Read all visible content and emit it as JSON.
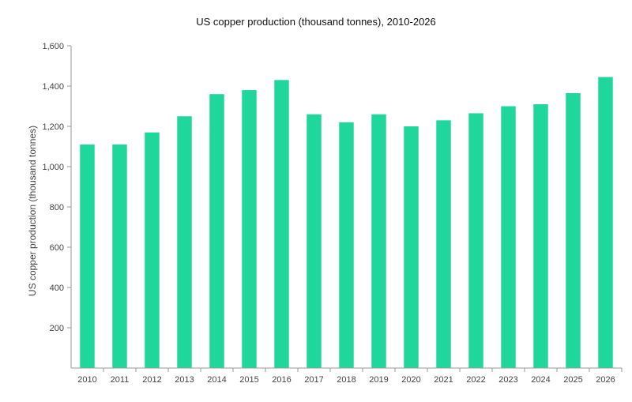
{
  "chart_data": {
    "type": "bar",
    "title": "US copper production (thousand tonnes), 2010-2026",
    "xlabel": "",
    "ylabel": "US copper production  (thousand tonnes)",
    "categories": [
      "2010",
      "2011",
      "2012",
      "2013",
      "2014",
      "2015",
      "2016",
      "2017",
      "2018",
      "2019",
      "2020",
      "2021",
      "2022",
      "2023",
      "2024",
      "2025",
      "2026"
    ],
    "values": [
      1110,
      1110,
      1170,
      1250,
      1360,
      1380,
      1430,
      1260,
      1220,
      1260,
      1200,
      1230,
      1265,
      1300,
      1310,
      1365,
      1445
    ],
    "ylim": [
      0,
      1600
    ],
    "yticks": [
      200,
      400,
      600,
      800,
      1000,
      1200,
      1400,
      1600
    ],
    "ytick_labels": [
      "200",
      "400",
      "600",
      "800",
      "1,000",
      "1,200",
      "1,400",
      "1,600"
    ],
    "grid": false,
    "colors": {
      "bar": "#1fd69b",
      "axis": "#9a9a9a",
      "text": "#444444"
    }
  }
}
